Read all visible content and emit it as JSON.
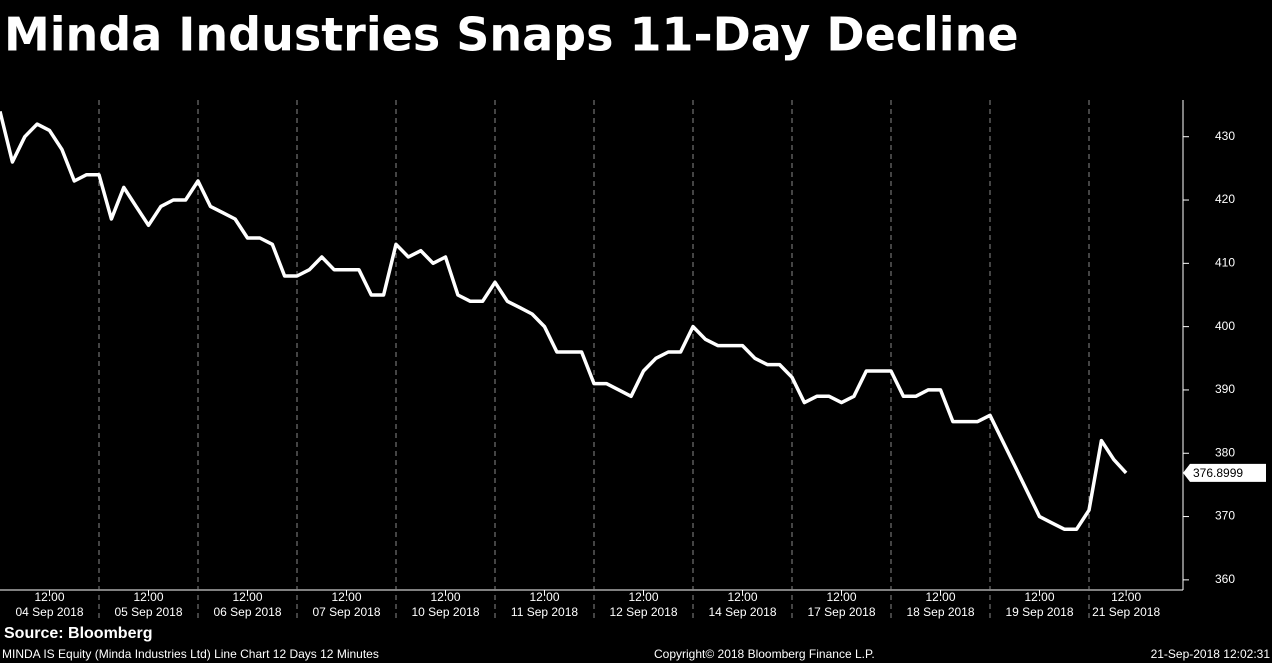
{
  "chart_data": {
    "type": "line",
    "title": "Minda Industries Snaps 11-Day Decline",
    "source": "Source: Bloomberg",
    "footer_left": "MINDA IS Equity (Minda Industries Ltd) Line Chart 12 Days 12 Minutes",
    "footer_center": "Copyright© 2018 Bloomberg Finance L.P.",
    "footer_right": "21-Sep-2018 12:02:31",
    "x_tick_time": "12:00",
    "categories": [
      null,
      null,
      null,
      null,
      "04 Sep 2018",
      null,
      null,
      null,
      null,
      null,
      null,
      null,
      "05 Sep 2018",
      null,
      null,
      null,
      null,
      null,
      null,
      null,
      "06 Sep 2018",
      null,
      null,
      null,
      null,
      null,
      null,
      null,
      "07 Sep 2018",
      null,
      null,
      null,
      null,
      null,
      null,
      null,
      "10 Sep 2018",
      null,
      null,
      null,
      null,
      null,
      null,
      null,
      "11 Sep 2018",
      null,
      null,
      null,
      null,
      null,
      null,
      null,
      "12 Sep 2018",
      null,
      null,
      null,
      null,
      null,
      null,
      null,
      "14 Sep 2018",
      null,
      null,
      null,
      null,
      null,
      null,
      null,
      "17 Sep 2018",
      null,
      null,
      null,
      null,
      null,
      null,
      null,
      "18 Sep 2018",
      null,
      null,
      null,
      null,
      null,
      null,
      null,
      "19 Sep 2018",
      null,
      null,
      null,
      null,
      null,
      null,
      "21 Sep 2018"
    ],
    "series": [
      {
        "name": "MINDA IS Equity",
        "color": "#ffffff",
        "values": [
          434,
          426,
          430,
          432,
          431,
          428,
          423,
          424,
          424,
          417,
          422,
          419,
          416,
          419,
          420,
          420,
          423,
          419,
          418,
          417,
          414,
          414,
          413,
          408,
          408,
          409,
          411,
          409,
          409,
          409,
          405,
          405,
          413,
          411,
          412,
          410,
          411,
          405,
          404,
          404,
          407,
          404,
          403,
          402,
          400,
          396,
          396,
          396,
          391,
          391,
          390,
          389,
          393,
          395,
          396,
          396,
          400,
          398,
          397,
          397,
          397,
          395,
          394,
          394,
          392,
          388,
          389,
          389,
          388,
          389,
          393,
          393,
          393,
          389,
          389,
          390,
          390,
          385,
          385,
          385,
          386,
          382,
          378,
          374,
          370,
          369,
          368,
          368,
          371,
          382,
          379,
          376.8999
        ]
      }
    ],
    "last_price": 376.8999,
    "ylim": [
      358.4,
      435.8
    ],
    "yticks": [
      360,
      370,
      380,
      390,
      400,
      410,
      420,
      430
    ]
  }
}
